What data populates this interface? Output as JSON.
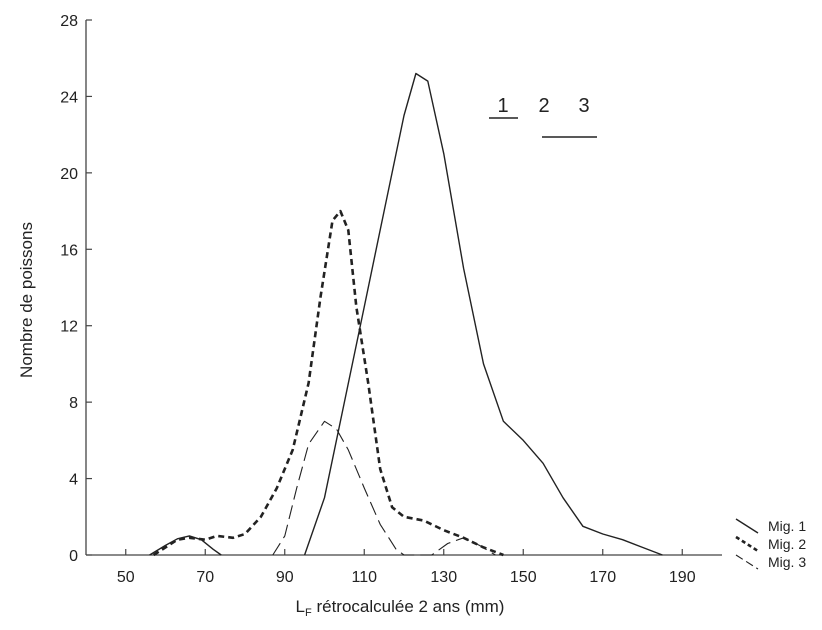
{
  "chart_data": {
    "type": "line",
    "title": "",
    "xlabel_main": "L",
    "xlabel_sub": "F",
    "xlabel_rest": " rétrocalculée 2 ans (mm)",
    "ylabel": "Nombre de poissons",
    "xlim": [
      40,
      200
    ],
    "ylim": [
      0,
      28
    ],
    "x_ticks": [
      50,
      70,
      90,
      110,
      130,
      150,
      170,
      190
    ],
    "y_ticks": [
      0,
      4,
      8,
      12,
      16,
      20,
      24,
      28
    ],
    "grid": false,
    "legend_position": "bottom-right",
    "series": [
      {
        "name": "Mig. 1",
        "style": "solid",
        "points": [
          [
            95,
            0
          ],
          [
            100,
            3
          ],
          [
            105,
            8
          ],
          [
            110,
            13
          ],
          [
            115,
            18
          ],
          [
            120,
            23
          ],
          [
            123,
            25.2
          ],
          [
            126,
            24.8
          ],
          [
            130,
            21
          ],
          [
            135,
            15
          ],
          [
            140,
            10
          ],
          [
            145,
            7
          ],
          [
            150,
            6
          ],
          [
            155,
            4.8
          ],
          [
            160,
            3
          ],
          [
            165,
            1.5
          ],
          [
            170,
            1.1
          ],
          [
            175,
            0.8
          ],
          [
            180,
            0.4
          ],
          [
            185,
            0
          ]
        ],
        "color": "#222222"
      },
      {
        "name": "Mig. 2",
        "style": "dashed",
        "points": [
          [
            57,
            0
          ],
          [
            60,
            0.4
          ],
          [
            63,
            0.8
          ],
          [
            66,
            0.9
          ],
          [
            70,
            0.8
          ],
          [
            73,
            1.0
          ],
          [
            77,
            0.9
          ],
          [
            80,
            1.1
          ],
          [
            84,
            2
          ],
          [
            88,
            3.5
          ],
          [
            92,
            5.5
          ],
          [
            96,
            9
          ],
          [
            99,
            13.5
          ],
          [
            102,
            17.5
          ],
          [
            104,
            18
          ],
          [
            106,
            17
          ],
          [
            108,
            13
          ],
          [
            111,
            9
          ],
          [
            114,
            4.5
          ],
          [
            117,
            2.5
          ],
          [
            120,
            2
          ],
          [
            125,
            1.8
          ],
          [
            130,
            1.3
          ],
          [
            135,
            0.9
          ],
          [
            140,
            0.4
          ],
          [
            145,
            0
          ]
        ],
        "color": "#222222"
      },
      {
        "name": "Mig. 3",
        "style": "long-dash",
        "points": [
          [
            87,
            0
          ],
          [
            90,
            1
          ],
          [
            93,
            3.5
          ],
          [
            96,
            5.8
          ],
          [
            100,
            7
          ],
          [
            103,
            6.6
          ],
          [
            106,
            5.5
          ],
          [
            110,
            3.5
          ],
          [
            114,
            1.6
          ],
          [
            118,
            0.3
          ],
          [
            120,
            0
          ],
          [
            127,
            0
          ],
          [
            131,
            0.6
          ],
          [
            135,
            0.9
          ],
          [
            139,
            0.5
          ],
          [
            143,
            0
          ]
        ],
        "color": "#222222"
      },
      {
        "name": "",
        "style": "solid",
        "points": [
          [
            56,
            0
          ],
          [
            60,
            0.5
          ],
          [
            63,
            0.85
          ],
          [
            66,
            1
          ],
          [
            69,
            0.8
          ],
          [
            72,
            0.3
          ],
          [
            74,
            0
          ]
        ],
        "color": "#222222"
      }
    ],
    "annotation": {
      "labels": [
        "1",
        "2",
        "3"
      ]
    },
    "legend": [
      {
        "label": "Mig. 1",
        "style": "solid"
      },
      {
        "label": "Mig. 2",
        "style": "dashed"
      },
      {
        "label": "Mig. 3",
        "style": "long-dash"
      }
    ]
  }
}
